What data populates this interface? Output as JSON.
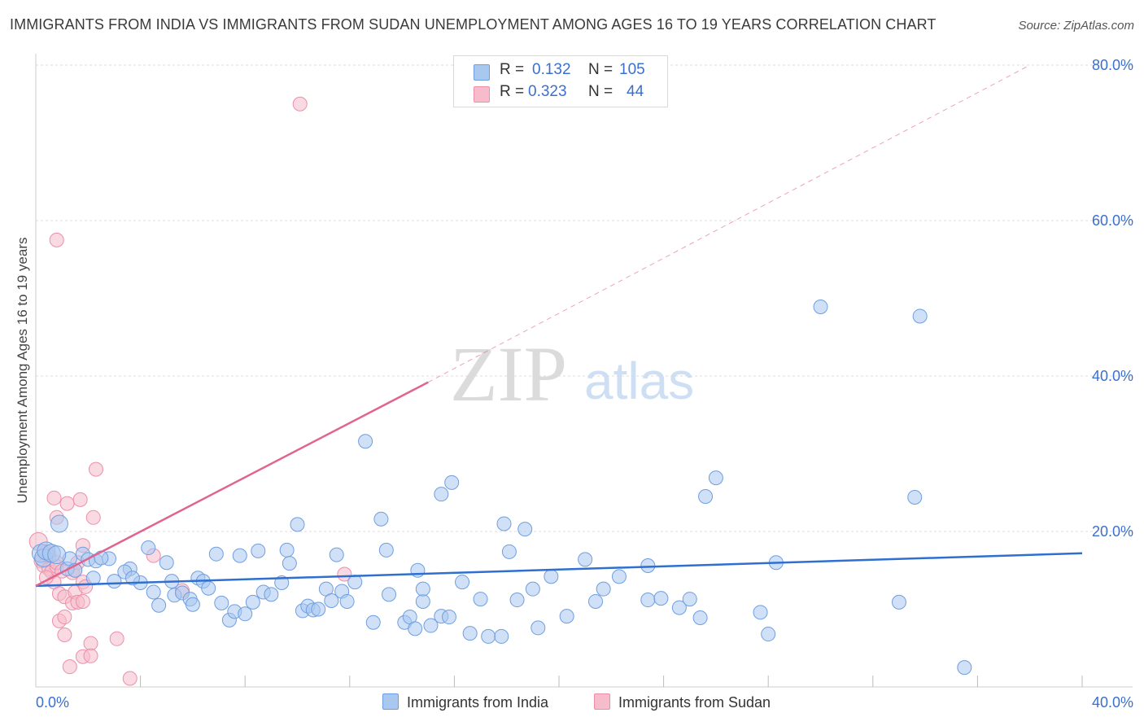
{
  "title": "IMMIGRANTS FROM INDIA VS IMMIGRANTS FROM SUDAN UNEMPLOYMENT AMONG AGES 16 TO 19 YEARS CORRELATION CHART",
  "source": "Source: ZipAtlas.com",
  "watermark": {
    "zip": "ZIP",
    "atlas": "atlas"
  },
  "colors": {
    "india_fill": "#a9c8f0",
    "india_stroke": "#6f9ee0",
    "india_line": "#2f6fd0",
    "sudan_fill": "#f6bccb",
    "sudan_stroke": "#ec8fa9",
    "sudan_line": "#e0648f",
    "axis_text": "#3a6fd0",
    "grid": "#dddddd"
  },
  "legend": {
    "india": {
      "r_label": "R =",
      "r_value": "0.132",
      "n_label": "N =",
      "n_value": "105"
    },
    "sudan": {
      "r_label": "R =",
      "r_value": "0.323",
      "n_label": "N =",
      "n_value": "44"
    }
  },
  "chart_data": {
    "type": "scatter",
    "title": "IMMIGRANTS FROM INDIA VS IMMIGRANTS FROM SUDAN UNEMPLOYMENT AMONG AGES 16 TO 19 YEARS CORRELATION CHART",
    "xlabel": "",
    "ylabel": "Unemployment Among Ages 16 to 19 years",
    "xlim": [
      0,
      40
    ],
    "ylim": [
      0,
      80
    ],
    "x_tick_labels": [
      "0.0%",
      "40.0%"
    ],
    "y_tick_values": [
      20,
      40,
      60,
      80
    ],
    "y_tick_labels": [
      "20.0%",
      "40.0%",
      "60.0%",
      "80.0%"
    ],
    "grid": true,
    "series": [
      {
        "name": "Immigrants from India",
        "trend": {
          "x": [
            0,
            40
          ],
          "y": [
            13.0,
            17.2
          ],
          "dashed_to": null
        },
        "points": [
          [
            0.2,
            17.2
          ],
          [
            0.3,
            16.6
          ],
          [
            0.4,
            17.5
          ],
          [
            0.6,
            17.2
          ],
          [
            0.9,
            21.0
          ],
          [
            1.2,
            15.2
          ],
          [
            1.3,
            16.5
          ],
          [
            1.5,
            15.0
          ],
          [
            1.8,
            17.1
          ],
          [
            2.0,
            16.4
          ],
          [
            2.2,
            14.0
          ],
          [
            2.3,
            16.2
          ],
          [
            2.8,
            16.5
          ],
          [
            3.0,
            13.6
          ],
          [
            3.6,
            15.2
          ],
          [
            3.4,
            14.8
          ],
          [
            4.0,
            13.4
          ],
          [
            4.3,
            17.9
          ],
          [
            4.5,
            12.2
          ],
          [
            4.7,
            10.5
          ],
          [
            5.0,
            16.0
          ],
          [
            5.2,
            13.6
          ],
          [
            5.3,
            11.8
          ],
          [
            5.6,
            12.1
          ],
          [
            5.9,
            11.3
          ],
          [
            6.0,
            10.6
          ],
          [
            6.2,
            14.0
          ],
          [
            6.4,
            13.6
          ],
          [
            6.6,
            12.7
          ],
          [
            6.9,
            17.1
          ],
          [
            7.1,
            10.8
          ],
          [
            7.4,
            8.6
          ],
          [
            7.6,
            9.7
          ],
          [
            7.8,
            16.9
          ],
          [
            8.0,
            9.4
          ],
          [
            8.3,
            10.9
          ],
          [
            8.5,
            17.5
          ],
          [
            8.7,
            12.2
          ],
          [
            9.0,
            11.9
          ],
          [
            9.4,
            13.4
          ],
          [
            9.6,
            17.6
          ],
          [
            9.7,
            15.9
          ],
          [
            10.0,
            20.9
          ],
          [
            10.2,
            9.8
          ],
          [
            10.4,
            10.4
          ],
          [
            10.6,
            9.9
          ],
          [
            10.8,
            10.0
          ],
          [
            11.1,
            12.6
          ],
          [
            11.3,
            11.1
          ],
          [
            11.5,
            17.0
          ],
          [
            11.7,
            12.3
          ],
          [
            11.9,
            11.0
          ],
          [
            12.2,
            13.5
          ],
          [
            12.6,
            31.6
          ],
          [
            12.9,
            8.3
          ],
          [
            13.2,
            21.6
          ],
          [
            13.4,
            17.6
          ],
          [
            13.5,
            11.9
          ],
          [
            14.1,
            8.3
          ],
          [
            14.3,
            9.0
          ],
          [
            14.5,
            7.5
          ],
          [
            14.8,
            11.0
          ],
          [
            15.1,
            7.9
          ],
          [
            15.5,
            9.1
          ],
          [
            15.8,
            9.0
          ],
          [
            14.6,
            15.0
          ],
          [
            14.8,
            12.6
          ],
          [
            15.5,
            24.8
          ],
          [
            15.9,
            26.3
          ],
          [
            16.3,
            13.5
          ],
          [
            16.6,
            6.9
          ],
          [
            17.0,
            11.3
          ],
          [
            17.3,
            6.5
          ],
          [
            17.8,
            6.5
          ],
          [
            17.9,
            21.0
          ],
          [
            18.1,
            17.4
          ],
          [
            18.4,
            11.2
          ],
          [
            18.7,
            20.3
          ],
          [
            19.0,
            12.6
          ],
          [
            19.2,
            7.6
          ],
          [
            19.7,
            14.2
          ],
          [
            20.3,
            9.1
          ],
          [
            21.0,
            16.4
          ],
          [
            21.4,
            11.0
          ],
          [
            21.7,
            12.6
          ],
          [
            22.3,
            14.2
          ],
          [
            23.4,
            15.6
          ],
          [
            23.4,
            11.2
          ],
          [
            23.9,
            11.4
          ],
          [
            24.6,
            10.2
          ],
          [
            25.0,
            11.3
          ],
          [
            25.4,
            8.9
          ],
          [
            25.6,
            24.5
          ],
          [
            26.0,
            26.9
          ],
          [
            27.7,
            9.6
          ],
          [
            28.0,
            6.8
          ],
          [
            28.3,
            16.0
          ],
          [
            30.0,
            48.9
          ],
          [
            33.0,
            10.9
          ],
          [
            33.6,
            24.4
          ],
          [
            33.8,
            47.7
          ],
          [
            35.5,
            2.5
          ],
          [
            2.5,
            16.6
          ],
          [
            3.7,
            14.0
          ],
          [
            0.8,
            17.0
          ]
        ],
        "sizes_note": "cluster near origin rendered with a few larger circles"
      },
      {
        "name": "Immigrants from Sudan",
        "trend": {
          "x": [
            0,
            15.0
          ],
          "y": [
            13.0,
            39.2
          ],
          "dashed_to": [
            38.0,
            80.0
          ]
        },
        "points": [
          [
            0.1,
            18.7
          ],
          [
            0.2,
            16.2
          ],
          [
            0.3,
            15.6
          ],
          [
            0.4,
            17.4
          ],
          [
            0.5,
            15.2
          ],
          [
            0.5,
            16.9
          ],
          [
            0.6,
            14.8
          ],
          [
            0.7,
            13.5
          ],
          [
            0.8,
            21.8
          ],
          [
            0.8,
            15.5
          ],
          [
            0.8,
            57.5
          ],
          [
            0.7,
            24.3
          ],
          [
            0.8,
            16.0
          ],
          [
            0.9,
            12.0
          ],
          [
            0.9,
            8.5
          ],
          [
            1.0,
            14.9
          ],
          [
            1.1,
            9.0
          ],
          [
            1.1,
            11.6
          ],
          [
            1.1,
            6.7
          ],
          [
            1.2,
            23.6
          ],
          [
            1.3,
            2.6
          ],
          [
            1.4,
            14.7
          ],
          [
            1.4,
            10.8
          ],
          [
            1.5,
            12.2
          ],
          [
            1.6,
            10.9
          ],
          [
            1.6,
            16.0
          ],
          [
            1.7,
            24.1
          ],
          [
            1.8,
            13.5
          ],
          [
            1.8,
            11.0
          ],
          [
            1.8,
            3.9
          ],
          [
            1.8,
            18.2
          ],
          [
            1.9,
            12.9
          ],
          [
            2.1,
            5.6
          ],
          [
            2.1,
            4.0
          ],
          [
            2.2,
            21.8
          ],
          [
            2.3,
            28.0
          ],
          [
            3.1,
            6.2
          ],
          [
            3.6,
            1.1
          ],
          [
            4.5,
            16.9
          ],
          [
            5.6,
            12.4
          ],
          [
            11.8,
            14.5
          ],
          [
            10.1,
            75.0
          ],
          [
            1.5,
            15.0
          ],
          [
            0.4,
            14.1
          ]
        ]
      }
    ]
  },
  "bottom_legend": [
    {
      "label": "Immigrants from India"
    },
    {
      "label": "Immigrants from Sudan"
    }
  ]
}
